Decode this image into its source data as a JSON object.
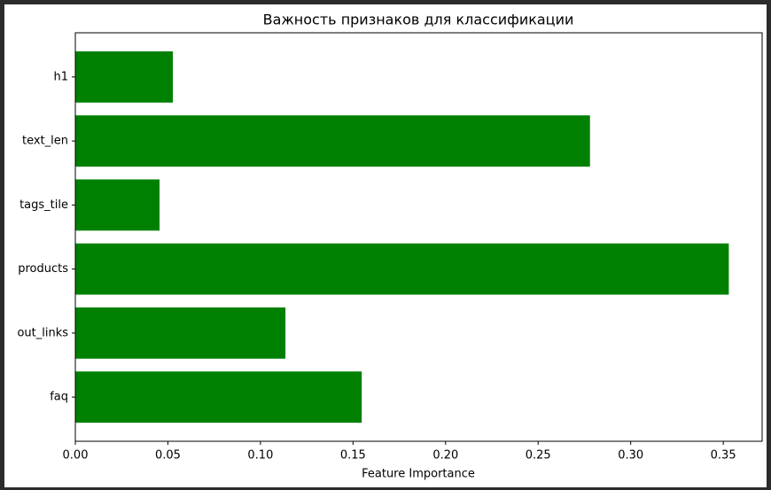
{
  "chart_data": {
    "type": "barh",
    "title": "Важность признаков для классификации",
    "xlabel": "Feature Importance",
    "categories": [
      "faq",
      "out_links",
      "products",
      "tags_tile",
      "text_len",
      "h1"
    ],
    "values": [
      0.1547,
      0.1135,
      0.353,
      0.0455,
      0.278,
      0.0527
    ],
    "color": "#008000",
    "xlim": [
      0,
      0.371
    ],
    "xticks": [
      {
        "value": 0,
        "label": "0.00"
      },
      {
        "value": 0.05,
        "label": "0.05"
      },
      {
        "value": 0.1,
        "label": "0.10"
      },
      {
        "value": 0.15,
        "label": "0.15"
      },
      {
        "value": 0.2,
        "label": "0.20"
      },
      {
        "value": 0.25,
        "label": "0.25"
      },
      {
        "value": 0.3,
        "label": "0.30"
      },
      {
        "value": 0.35,
        "label": "0.35"
      }
    ],
    "grid": false
  }
}
